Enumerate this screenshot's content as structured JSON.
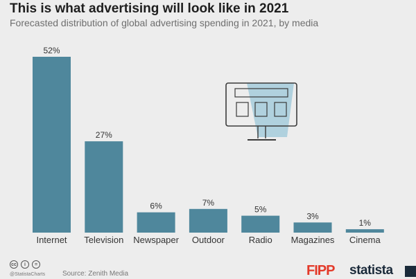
{
  "header": {
    "title": "This is what advertising will look like in 2021",
    "subtitle": "Forecasted distribution of global advertising spending in 2021, by media"
  },
  "chart_data": {
    "type": "bar",
    "title": "This is what advertising will look like in 2021",
    "subtitle": "Forecasted distribution of global advertising spending in 2021, by media",
    "categories": [
      "Internet",
      "Television",
      "Newspaper",
      "Outdoor",
      "Radio",
      "Magazines",
      "Cinema"
    ],
    "values": [
      52,
      27,
      6,
      7,
      5,
      3,
      1
    ],
    "value_labels": [
      "52%",
      "27%",
      "6%",
      "7%",
      "5%",
      "3%",
      "1%"
    ],
    "xlabel": "",
    "ylabel": "",
    "ylim": [
      0,
      52
    ],
    "grid": false,
    "bar_color": "#4f879c"
  },
  "footer": {
    "handle": "@StatistaCharts",
    "source": "Source: Zenith Media",
    "logo_fipp": "FIPP",
    "logo_statista": "statista"
  },
  "colors": {
    "background": "#ededed",
    "bar": "#4f879c",
    "illustration_accent": "#a8cddc",
    "fipp_red": "#e33a2a",
    "statista_navy": "#1b2a3a"
  },
  "icons": [
    "cc-icon",
    "person-icon",
    "equals-icon",
    "monitor-illustration-icon"
  ]
}
